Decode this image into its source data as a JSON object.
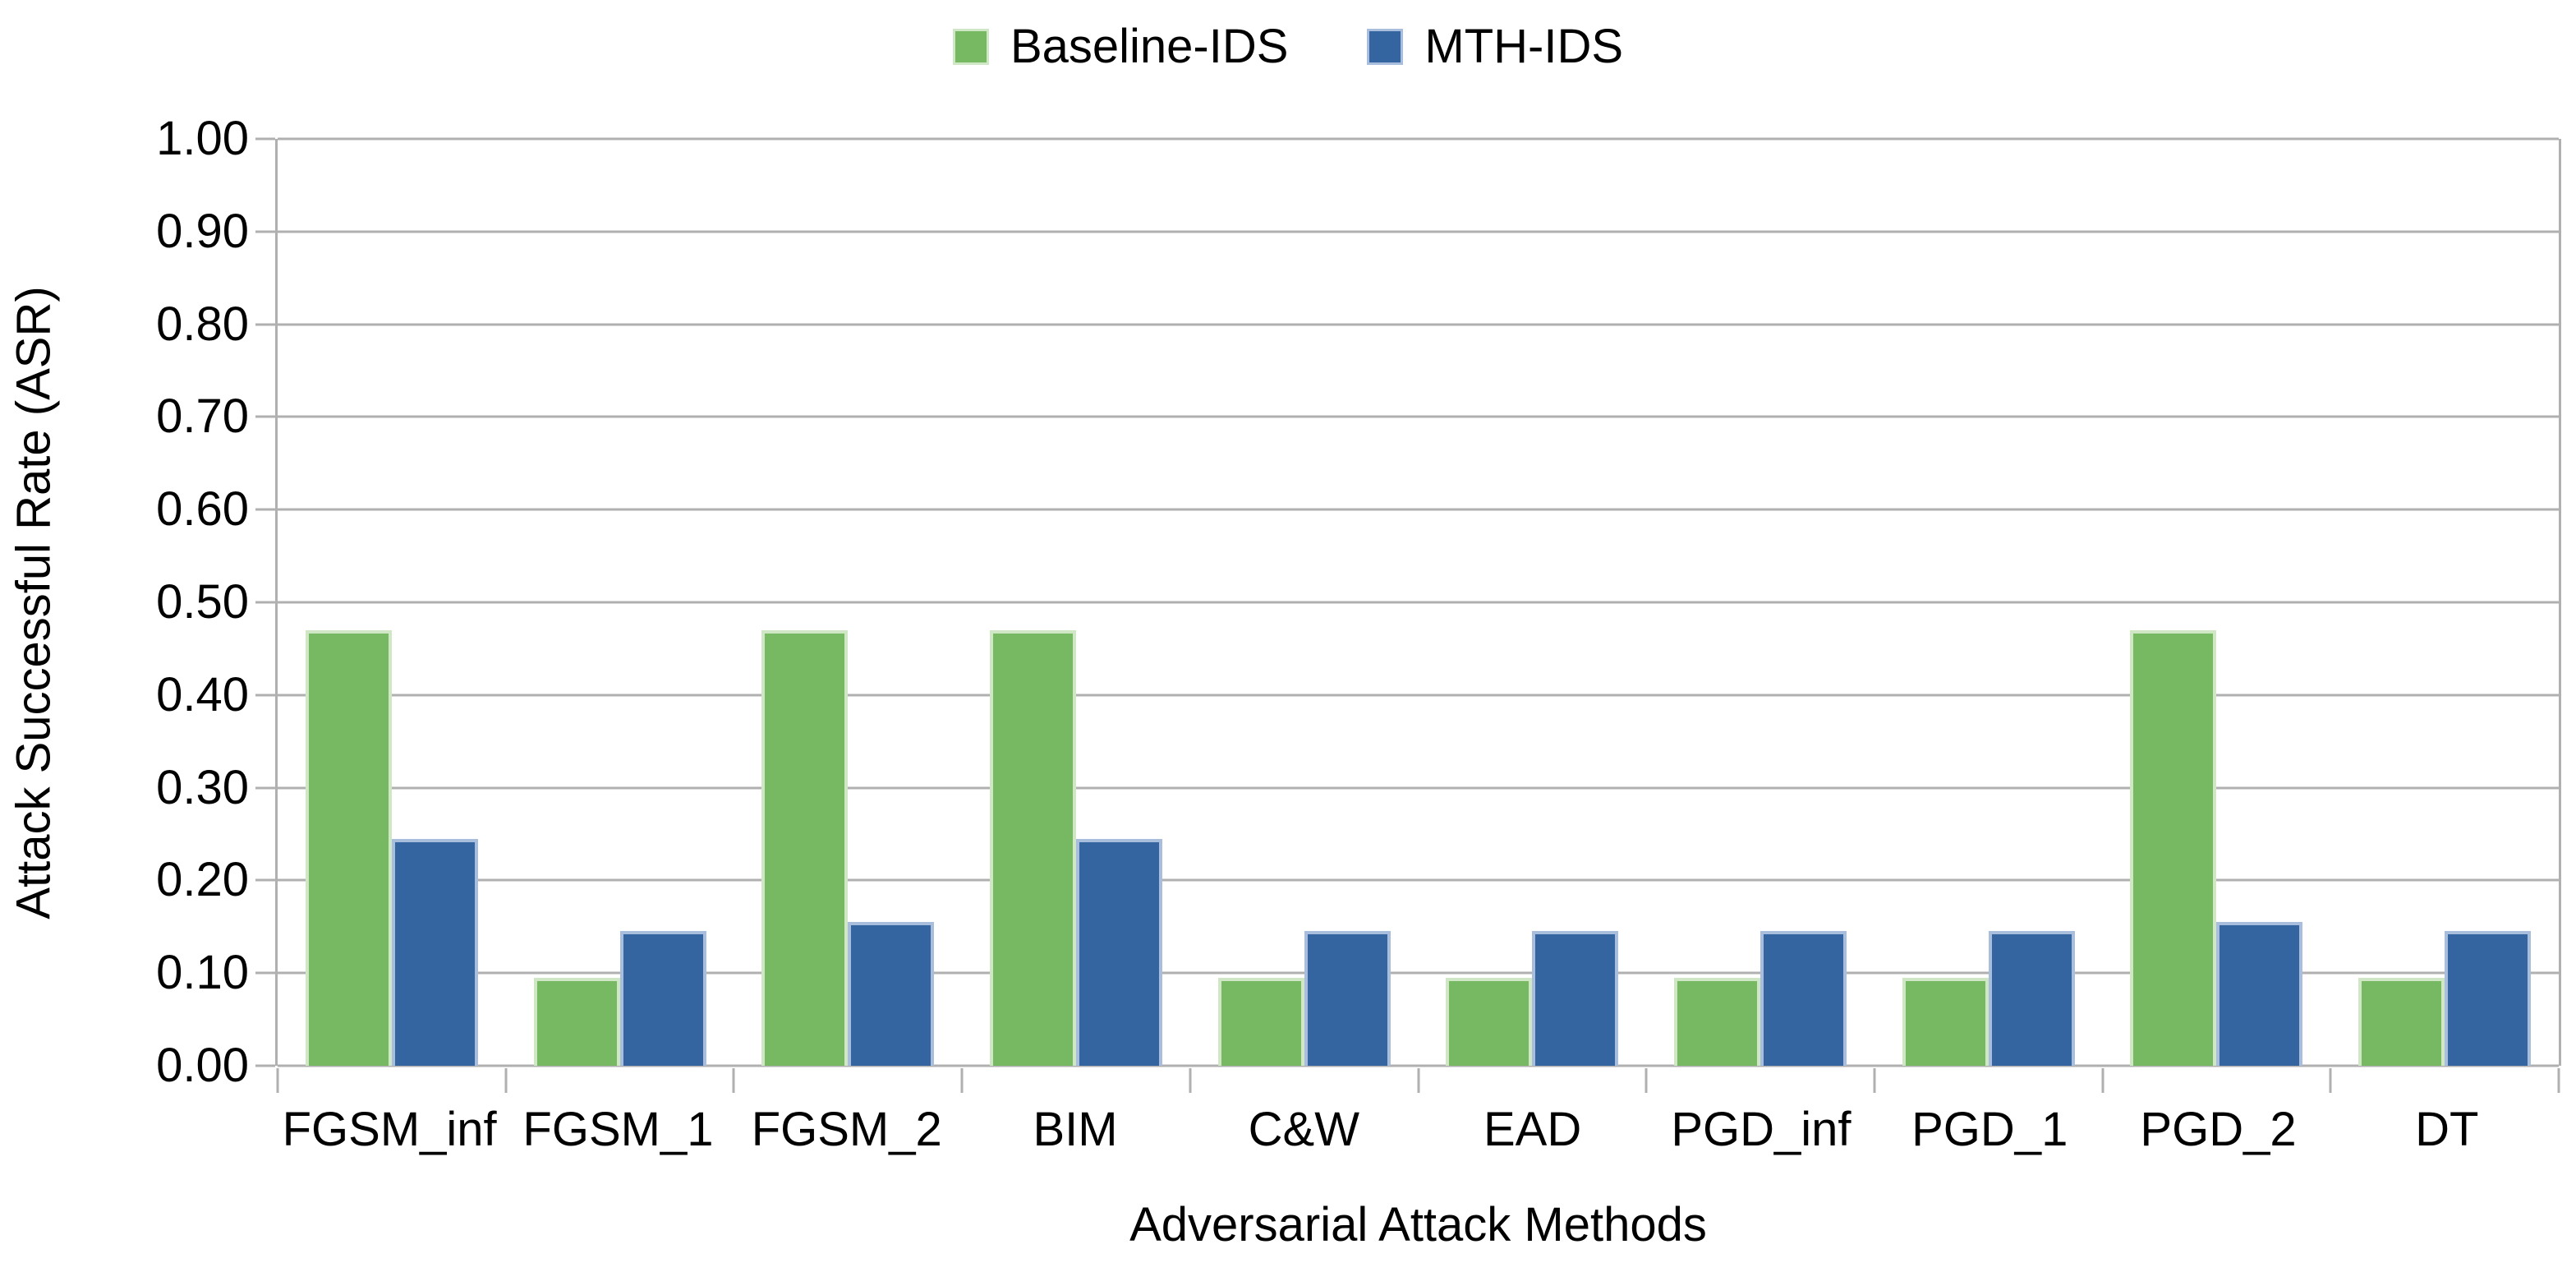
{
  "chart_data": {
    "type": "bar",
    "title": "",
    "categories": [
      "FGSM_inf",
      "FGSM_1",
      "FGSM_2",
      "BIM",
      "C&W",
      "EAD",
      "PGD_inf",
      "PGD_1",
      "PGD_2",
      "DT"
    ],
    "series": [
      {
        "name": "Baseline-IDS",
        "color": "#77b962",
        "edge_color": "#cfe7c4",
        "values": [
          0.47,
          0.095,
          0.47,
          0.47,
          0.095,
          0.095,
          0.095,
          0.095,
          0.47,
          0.095
        ]
      },
      {
        "name": "MTH-IDS",
        "color": "#3465a0",
        "edge_color": "#a9bedd",
        "values": [
          0.245,
          0.145,
          0.155,
          0.245,
          0.145,
          0.145,
          0.145,
          0.145,
          0.155,
          0.145
        ]
      }
    ],
    "xlabel": "Adversarial Attack Methods",
    "ylabel": "Attack Successful Rate (ASR)",
    "ylim": [
      0,
      1
    ],
    "y_tick_step": 0.1,
    "y_tick_labels": [
      "1.00",
      "0.90",
      "0.80",
      "0.70",
      "0.60",
      "0.50",
      "0.40",
      "0.30",
      "0.20",
      "0.10",
      "0.00"
    ],
    "grid": "horizontal",
    "legend_position": "top-center",
    "gridline_color": "#b0b0b0",
    "axis_color": "#b0b0b0",
    "text_color": "#000000",
    "background_color": "#ffffff"
  }
}
